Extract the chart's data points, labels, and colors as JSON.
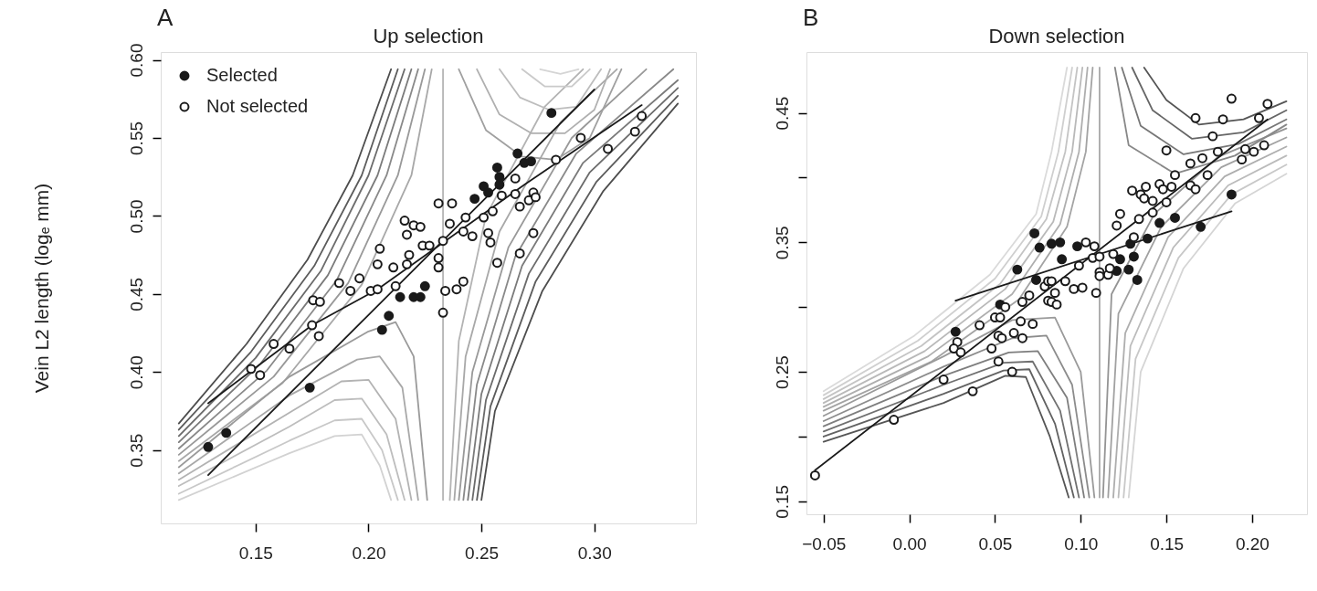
{
  "chart_data": [
    {
      "type": "scatter",
      "title": "Up selection",
      "ylabel": "Vein L2 length (logₑ mm)",
      "annotations": [
        "A"
      ],
      "legend": "top left",
      "grid": false,
      "xlim": [
        0.108,
        0.345
      ],
      "ylim": [
        0.303,
        0.605
      ],
      "xticks": [
        0.15,
        {
          "value": 0.2,
          "label": "0.20"
        },
        0.25,
        {
          "value": 0.3,
          "label": "0.30"
        }
      ],
      "yticks": [
        0.35,
        {
          "value": 0.4,
          "label": "0.40"
        },
        0.45,
        {
          "value": 0.5,
          "label": "0.50"
        },
        0.55,
        {
          "value": 0.6,
          "label": "0.60"
        }
      ],
      "series": [
        {
          "type": "line",
          "color": "#4d4d4d",
          "x": [
            0.116,
            0.146,
            0.173,
            0.193,
            0.21
          ],
          "values": [
            0.367,
            0.418,
            0.472,
            0.526,
            0.594
          ]
        },
        {
          "type": "line",
          "color": "#5c5c5c",
          "x": [
            0.116,
            0.148,
            0.176,
            0.197,
            0.213
          ],
          "values": [
            0.363,
            0.413,
            0.468,
            0.526,
            0.594
          ]
        },
        {
          "type": "line",
          "color": "#6b6b6b",
          "x": [
            0.116,
            0.15,
            0.179,
            0.2,
            0.216
          ],
          "values": [
            0.359,
            0.409,
            0.465,
            0.526,
            0.594
          ]
        },
        {
          "type": "line",
          "color": "#7a7a7a",
          "x": [
            0.116,
            0.152,
            0.182,
            0.204,
            0.219
          ],
          "values": [
            0.355,
            0.405,
            0.462,
            0.526,
            0.594
          ]
        },
        {
          "type": "line",
          "color": "#898989",
          "x": [
            0.116,
            0.155,
            0.186,
            0.208,
            0.222
          ],
          "values": [
            0.351,
            0.401,
            0.459,
            0.526,
            0.594
          ]
        },
        {
          "type": "line",
          "color": "#999999",
          "x": [
            0.116,
            0.158,
            0.191,
            0.213,
            0.225
          ],
          "values": [
            0.347,
            0.397,
            0.457,
            0.526,
            0.594
          ]
        },
        {
          "type": "line",
          "color": "#a8a8a8",
          "x": [
            0.116,
            0.162,
            0.197,
            0.219,
            0.228
          ],
          "values": [
            0.343,
            0.393,
            0.456,
            0.526,
            0.594
          ]
        },
        {
          "type": "line",
          "color": "#b5b5b5",
          "x": [
            0.233,
            0.233
          ],
          "values": [
            0.318,
            0.594
          ]
        },
        {
          "type": "line",
          "color": "#9a9a9a",
          "x": [
            0.116,
            0.165,
            0.2,
            0.212,
            0.22,
            0.226
          ],
          "values": [
            0.339,
            0.397,
            0.426,
            0.432,
            0.41,
            0.318
          ]
        },
        {
          "type": "line",
          "color": "#a8a8a8",
          "x": [
            0.116,
            0.165,
            0.195,
            0.205,
            0.215,
            0.222
          ],
          "values": [
            0.335,
            0.385,
            0.408,
            0.41,
            0.39,
            0.318
          ]
        },
        {
          "type": "line",
          "color": "#b3b3b3",
          "x": [
            0.116,
            0.165,
            0.188,
            0.2,
            0.212,
            0.219
          ],
          "values": [
            0.331,
            0.374,
            0.394,
            0.395,
            0.37,
            0.318
          ]
        },
        {
          "type": "line",
          "color": "#bdbdbd",
          "x": [
            0.116,
            0.165,
            0.185,
            0.197,
            0.208,
            0.216
          ],
          "values": [
            0.327,
            0.365,
            0.382,
            0.383,
            0.36,
            0.318
          ]
        },
        {
          "type": "line",
          "color": "#c8c8c8",
          "x": [
            0.116,
            0.165,
            0.185,
            0.197,
            0.206,
            0.213
          ],
          "values": [
            0.322,
            0.356,
            0.369,
            0.37,
            0.35,
            0.318
          ]
        },
        {
          "type": "line",
          "color": "#d2d2d2",
          "x": [
            0.116,
            0.165,
            0.185,
            0.197,
            0.205,
            0.21
          ],
          "values": [
            0.318,
            0.348,
            0.359,
            0.36,
            0.34,
            0.318
          ]
        },
        {
          "type": "line",
          "color": "#4d4d4d",
          "x": [
            0.25,
            0.256,
            0.277,
            0.304,
            0.337
          ],
          "values": [
            0.318,
            0.375,
            0.452,
            0.516,
            0.572
          ]
        },
        {
          "type": "line",
          "color": "#5c5c5c",
          "x": [
            0.248,
            0.254,
            0.274,
            0.301,
            0.337
          ],
          "values": [
            0.318,
            0.378,
            0.458,
            0.522,
            0.577
          ]
        },
        {
          "type": "line",
          "color": "#6b6b6b",
          "x": [
            0.246,
            0.252,
            0.271,
            0.298,
            0.337
          ],
          "values": [
            0.318,
            0.382,
            0.463,
            0.528,
            0.582
          ]
        },
        {
          "type": "line",
          "color": "#7a7a7a",
          "x": [
            0.244,
            0.25,
            0.268,
            0.295,
            0.337
          ],
          "values": [
            0.318,
            0.386,
            0.468,
            0.534,
            0.587
          ]
        },
        {
          "type": "line",
          "color": "#898989",
          "x": [
            0.242,
            0.248,
            0.265,
            0.292,
            0.335
          ],
          "values": [
            0.318,
            0.392,
            0.474,
            0.54,
            0.594
          ]
        },
        {
          "type": "line",
          "color": "#999999",
          "x": [
            0.24,
            0.246,
            0.262,
            0.29,
            0.323
          ],
          "values": [
            0.318,
            0.4,
            0.48,
            0.55,
            0.594
          ]
        },
        {
          "type": "line",
          "color": "#a8a8a8",
          "x": [
            0.238,
            0.243,
            0.258,
            0.285,
            0.31
          ],
          "values": [
            0.318,
            0.41,
            0.49,
            0.56,
            0.594
          ]
        },
        {
          "type": "line",
          "color": "#b3b3b3",
          "x": [
            0.236,
            0.24,
            0.252,
            0.278,
            0.295
          ],
          "values": [
            0.318,
            0.42,
            0.5,
            0.57,
            0.594
          ]
        },
        {
          "type": "line",
          "color": "#a0a0a0",
          "x": [
            0.24,
            0.252,
            0.268,
            0.283,
            0.298,
            0.312
          ],
          "values": [
            0.594,
            0.555,
            0.538,
            0.536,
            0.55,
            0.594
          ]
        },
        {
          "type": "line",
          "color": "#b0b0b0",
          "x": [
            0.248,
            0.258,
            0.272,
            0.287,
            0.3,
            0.307
          ],
          "values": [
            0.594,
            0.565,
            0.553,
            0.553,
            0.568,
            0.594
          ]
        },
        {
          "type": "line",
          "color": "#bdbdbd",
          "x": [
            0.258,
            0.267,
            0.28,
            0.292,
            0.303
          ],
          "values": [
            0.594,
            0.576,
            0.568,
            0.57,
            0.594
          ]
        },
        {
          "type": "line",
          "color": "#cacaca",
          "x": [
            0.268,
            0.278,
            0.29,
            0.298
          ],
          "values": [
            0.594,
            0.583,
            0.583,
            0.594
          ]
        },
        {
          "type": "line",
          "color": "#d5d5d5",
          "x": [
            0.276,
            0.285,
            0.293
          ],
          "values": [
            0.594,
            0.591,
            0.594
          ]
        },
        {
          "type": "line",
          "color": "#1a1a1a",
          "x": [
            0.129,
            0.175,
            0.204,
            0.269,
            0.321
          ],
          "values": [
            0.38,
            0.43,
            0.453,
            0.52,
            0.571
          ]
        },
        {
          "type": "line",
          "color": "#1a1a1a",
          "x": [
            0.129,
            0.3
          ],
          "values": [
            0.334,
            0.581
          ]
        },
        {
          "type": "scatter",
          "name": "Selected",
          "marker": "circle",
          "color": "#1a1a1a",
          "x": [
            0.129,
            0.137,
            0.174,
            0.206,
            0.209,
            0.214,
            0.22,
            0.225,
            0.223,
            0.247,
            0.251,
            0.253,
            0.257,
            0.258,
            0.258,
            0.266,
            0.269,
            0.272,
            0.281
          ],
          "values": [
            0.352,
            0.361,
            0.39,
            0.427,
            0.436,
            0.448,
            0.448,
            0.455,
            0.448,
            0.511,
            0.519,
            0.515,
            0.531,
            0.525,
            0.52,
            0.54,
            0.534,
            0.535,
            0.566
          ]
        },
        {
          "type": "scatter",
          "name": "Not selected",
          "marker": "circle",
          "color": "#ffffff",
          "x": [
            0.148,
            0.152,
            0.158,
            0.165,
            0.175,
            0.178,
            0.1755,
            0.1785,
            0.187,
            0.192,
            0.196,
            0.201,
            0.204,
            0.204,
            0.205,
            0.211,
            0.212,
            0.216,
            0.217,
            0.22,
            0.223,
            0.218,
            0.217,
            0.224,
            0.231,
            0.237,
            0.236,
            0.243,
            0.233,
            0.227,
            0.231,
            0.231,
            0.242,
            0.246,
            0.251,
            0.255,
            0.253,
            0.254,
            0.234,
            0.239,
            0.242,
            0.233,
            0.257,
            0.259,
            0.265,
            0.265,
            0.267,
            0.271,
            0.273,
            0.274,
            0.273,
            0.267,
            0.283,
            0.294,
            0.306,
            0.318,
            0.321
          ],
          "values": [
            0.402,
            0.398,
            0.418,
            0.415,
            0.43,
            0.423,
            0.446,
            0.445,
            0.457,
            0.452,
            0.46,
            0.452,
            0.453,
            0.469,
            0.479,
            0.467,
            0.455,
            0.497,
            0.488,
            0.494,
            0.493,
            0.475,
            0.469,
            0.481,
            0.508,
            0.508,
            0.495,
            0.499,
            0.484,
            0.481,
            0.473,
            0.467,
            0.49,
            0.487,
            0.499,
            0.503,
            0.489,
            0.483,
            0.452,
            0.453,
            0.458,
            0.438,
            0.47,
            0.513,
            0.524,
            0.514,
            0.506,
            0.51,
            0.515,
            0.512,
            0.489,
            0.476,
            0.536,
            0.55,
            0.543,
            0.554,
            0.564
          ]
        }
      ]
    },
    {
      "type": "scatter",
      "title": "Down selection",
      "annotations": [
        "B"
      ],
      "grid": false,
      "xlim": [
        -0.06,
        0.232
      ],
      "ylim": [
        0.14,
        0.497
      ],
      "xticks": [
        {
          "value": -0.05,
          "label": "−0.05"
        },
        {
          "value": 0,
          "label": "0.00"
        },
        0.05,
        {
          "value": 0.1,
          "label": "0.10"
        },
        0.15,
        {
          "value": 0.2,
          "label": "0.20"
        }
      ],
      "yticks": [
        0.15,
        {
          "value": 0.2,
          "label": null
        },
        0.25,
        {
          "value": 0.3,
          "label": null
        },
        0.35,
        {
          "value": 0.4,
          "label": null
        },
        0.45
      ],
      "series": [
        {
          "type": "line",
          "color": "#dadada",
          "x": [
            -0.05,
            0.003,
            0.047,
            0.074,
            0.083,
            0.092
          ],
          "values": [
            0.235,
            0.278,
            0.325,
            0.372,
            0.42,
            0.485
          ]
        },
        {
          "type": "line",
          "color": "#cfcfcf",
          "x": [
            -0.05,
            0.005,
            0.05,
            0.077,
            0.087,
            0.095
          ],
          "values": [
            0.232,
            0.274,
            0.322,
            0.37,
            0.42,
            0.485
          ]
        },
        {
          "type": "line",
          "color": "#c4c4c4",
          "x": [
            -0.05,
            0.007,
            0.053,
            0.08,
            0.091,
            0.098
          ],
          "values": [
            0.229,
            0.27,
            0.318,
            0.368,
            0.42,
            0.485
          ]
        },
        {
          "type": "line",
          "color": "#b9b9b9",
          "x": [
            -0.05,
            0.009,
            0.056,
            0.084,
            0.095,
            0.101
          ],
          "values": [
            0.226,
            0.266,
            0.314,
            0.366,
            0.42,
            0.485
          ]
        },
        {
          "type": "line",
          "color": "#aeaeae",
          "x": [
            -0.05,
            0.011,
            0.06,
            0.088,
            0.099,
            0.104
          ],
          "values": [
            0.223,
            0.262,
            0.31,
            0.364,
            0.42,
            0.485
          ]
        },
        {
          "type": "line",
          "color": "#a3a3a3",
          "x": [
            -0.05,
            0.013,
            0.064,
            0.092,
            0.103,
            0.107
          ],
          "values": [
            0.22,
            0.258,
            0.306,
            0.362,
            0.42,
            0.485
          ]
        },
        {
          "type": "line",
          "color": "#a8a8a8",
          "x": [
            0.111,
            0.111
          ],
          "values": [
            0.153,
            0.485
          ]
        },
        {
          "type": "line",
          "color": "#9a9a9a",
          "x": [
            -0.05,
            0.02,
            0.06,
            0.085,
            0.1,
            0.108
          ],
          "values": [
            0.216,
            0.262,
            0.29,
            0.292,
            0.25,
            0.153
          ]
        },
        {
          "type": "line",
          "color": "#8c8c8c",
          "x": [
            -0.05,
            0.02,
            0.06,
            0.08,
            0.095,
            0.105
          ],
          "values": [
            0.212,
            0.254,
            0.276,
            0.278,
            0.24,
            0.153
          ]
        },
        {
          "type": "line",
          "color": "#7e7e7e",
          "x": [
            -0.05,
            0.02,
            0.058,
            0.075,
            0.092,
            0.102
          ],
          "values": [
            0.208,
            0.247,
            0.265,
            0.266,
            0.23,
            0.153
          ]
        },
        {
          "type": "line",
          "color": "#707070",
          "x": [
            -0.05,
            0.02,
            0.055,
            0.072,
            0.088,
            0.099
          ],
          "values": [
            0.204,
            0.24,
            0.257,
            0.258,
            0.22,
            0.153
          ]
        },
        {
          "type": "line",
          "color": "#626262",
          "x": [
            -0.05,
            0.02,
            0.055,
            0.07,
            0.085,
            0.096
          ],
          "values": [
            0.2,
            0.233,
            0.251,
            0.252,
            0.21,
            0.153
          ]
        },
        {
          "type": "line",
          "color": "#555555",
          "x": [
            -0.05,
            0.02,
            0.056,
            0.068,
            0.082,
            0.093
          ],
          "values": [
            0.196,
            0.226,
            0.247,
            0.246,
            0.2,
            0.153
          ]
        },
        {
          "type": "line",
          "color": "#d5d5d5",
          "x": [
            0.128,
            0.135,
            0.16,
            0.19,
            0.22
          ],
          "values": [
            0.153,
            0.25,
            0.33,
            0.38,
            0.403
          ]
        },
        {
          "type": "line",
          "color": "#c8c8c8",
          "x": [
            0.125,
            0.132,
            0.157,
            0.188,
            0.22
          ],
          "values": [
            0.153,
            0.26,
            0.338,
            0.387,
            0.41
          ]
        },
        {
          "type": "line",
          "color": "#bbbbbb",
          "x": [
            0.122,
            0.129,
            0.154,
            0.186,
            0.22
          ],
          "values": [
            0.153,
            0.27,
            0.346,
            0.394,
            0.417
          ]
        },
        {
          "type": "line",
          "color": "#aeaeae",
          "x": [
            0.119,
            0.126,
            0.151,
            0.184,
            0.22
          ],
          "values": [
            0.153,
            0.28,
            0.354,
            0.401,
            0.424
          ]
        },
        {
          "type": "line",
          "color": "#a1a1a1",
          "x": [
            0.116,
            0.122,
            0.147,
            0.182,
            0.22
          ],
          "values": [
            0.153,
            0.295,
            0.362,
            0.408,
            0.431
          ]
        },
        {
          "type": "line",
          "color": "#949494",
          "x": [
            0.113,
            0.118,
            0.143,
            0.18,
            0.22
          ],
          "values": [
            0.153,
            0.31,
            0.372,
            0.416,
            0.438
          ]
        },
        {
          "type": "line",
          "color": "#555555",
          "x": [
            0.137,
            0.15,
            0.169,
            0.195,
            0.22
          ],
          "values": [
            0.485,
            0.46,
            0.441,
            0.445,
            0.459
          ]
        },
        {
          "type": "line",
          "color": "#666666",
          "x": [
            0.13,
            0.142,
            0.165,
            0.195,
            0.22
          ],
          "values": [
            0.485,
            0.452,
            0.43,
            0.435,
            0.452
          ]
        },
        {
          "type": "line",
          "color": "#777777",
          "x": [
            0.124,
            0.135,
            0.16,
            0.192,
            0.22
          ],
          "values": [
            0.485,
            0.44,
            0.418,
            0.426,
            0.445
          ]
        },
        {
          "type": "line",
          "color": "#888888",
          "x": [
            0.12,
            0.128,
            0.155,
            0.19,
            0.22
          ],
          "values": [
            0.485,
            0.425,
            0.403,
            0.417,
            0.441
          ]
        },
        {
          "type": "line",
          "color": "#1a1a1a",
          "x": [
            -0.055,
            0.209
          ],
          "values": [
            0.174,
            0.445
          ]
        },
        {
          "type": "line",
          "color": "#1a1a1a",
          "x": [
            0.027,
            0.188
          ],
          "values": [
            0.305,
            0.374
          ]
        },
        {
          "type": "scatter",
          "marker": "circle",
          "color": "#1a1a1a",
          "x": [
            0.073,
            0.076,
            0.063,
            0.074,
            0.053,
            0.027,
            0.083,
            0.088,
            0.089,
            0.098,
            0.123,
            0.129,
            0.131,
            0.121,
            0.128,
            0.133,
            0.139,
            0.146,
            0.155,
            0.17,
            0.188
          ],
          "values": [
            0.357,
            0.346,
            0.329,
            0.321,
            0.302,
            0.281,
            0.349,
            0.35,
            0.337,
            0.347,
            0.337,
            0.349,
            0.339,
            0.328,
            0.329,
            0.321,
            0.353,
            0.365,
            0.369,
            0.362,
            0.387
          ]
        },
        {
          "type": "scatter",
          "marker": "circle",
          "color": "#ffffff",
          "x": [
            -0.055,
            -0.009,
            0.02,
            0.037,
            0.028,
            0.026,
            0.03,
            0.041,
            0.048,
            0.052,
            0.06,
            0.05,
            0.053,
            0.056,
            0.052,
            0.054,
            0.061,
            0.066,
            0.065,
            0.072,
            0.066,
            0.07,
            0.079,
            0.081,
            0.081,
            0.083,
            0.083,
            0.085,
            0.086,
            0.091,
            0.096,
            0.101,
            0.109,
            0.099,
            0.103,
            0.108,
            0.107,
            0.111,
            0.111,
            0.111,
            0.116,
            0.117,
            0.119,
            0.121,
            0.123,
            0.131,
            0.134,
            0.13,
            0.135,
            0.137,
            0.138,
            0.142,
            0.142,
            0.146,
            0.148,
            0.15,
            0.153,
            0.15,
            0.155,
            0.164,
            0.164,
            0.167,
            0.171,
            0.174,
            0.167,
            0.177,
            0.18,
            0.183,
            0.188,
            0.194,
            0.196,
            0.201,
            0.204,
            0.207,
            0.209
          ],
          "values": [
            0.17,
            0.213,
            0.244,
            0.235,
            0.273,
            0.268,
            0.265,
            0.286,
            0.268,
            0.258,
            0.25,
            0.292,
            0.292,
            0.3,
            0.278,
            0.276,
            0.28,
            0.276,
            0.289,
            0.287,
            0.304,
            0.309,
            0.316,
            0.32,
            0.305,
            0.304,
            0.32,
            0.311,
            0.302,
            0.32,
            0.314,
            0.315,
            0.311,
            0.332,
            0.35,
            0.347,
            0.338,
            0.339,
            0.327,
            0.324,
            0.325,
            0.33,
            0.341,
            0.363,
            0.372,
            0.354,
            0.368,
            0.39,
            0.387,
            0.384,
            0.393,
            0.382,
            0.373,
            0.395,
            0.391,
            0.381,
            0.393,
            0.421,
            0.402,
            0.411,
            0.394,
            0.391,
            0.415,
            0.402,
            0.446,
            0.432,
            0.42,
            0.445,
            0.461,
            0.414,
            0.422,
            0.42,
            0.446,
            0.425,
            0.457
          ]
        }
      ]
    }
  ]
}
